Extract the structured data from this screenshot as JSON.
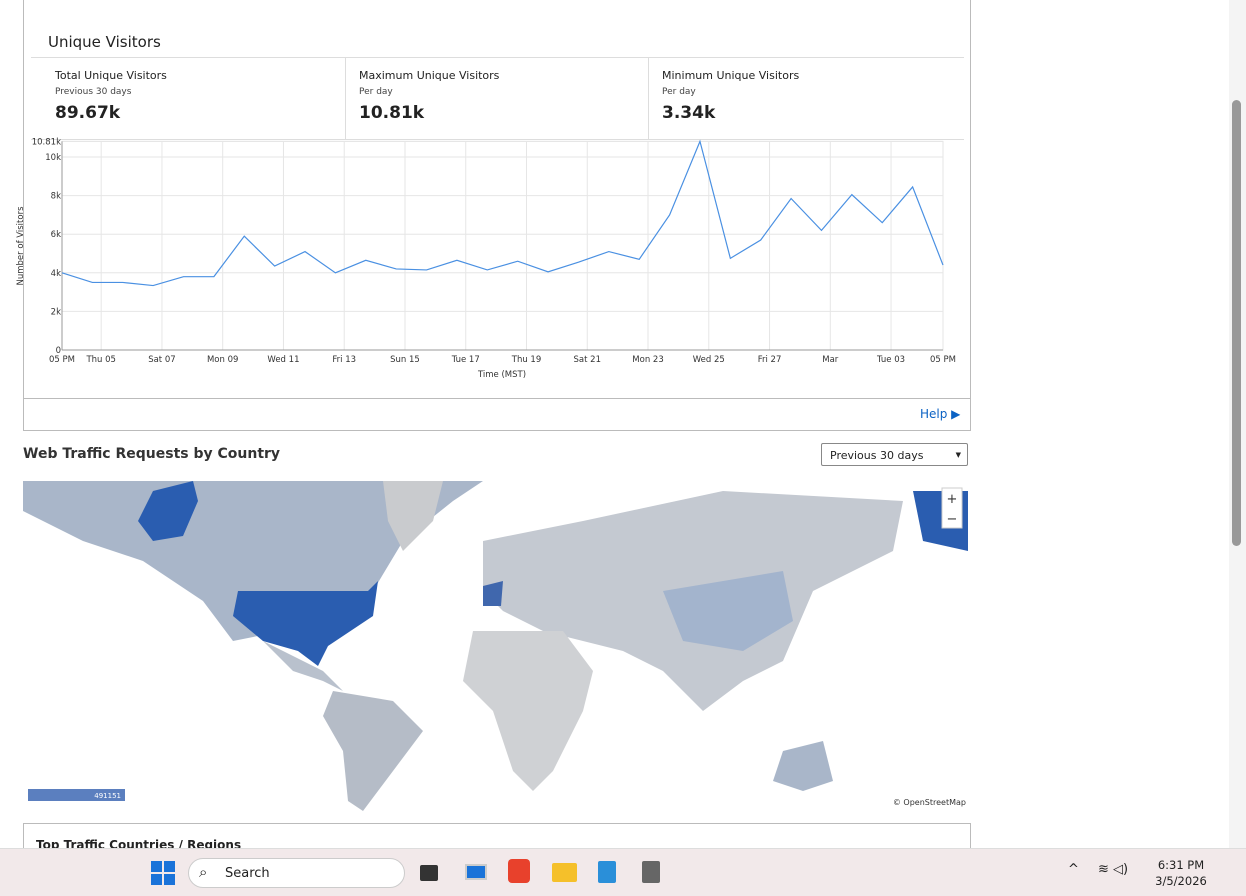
{
  "card": {
    "title": "Unique Visitors",
    "stats": [
      {
        "label": "Total Unique Visitors",
        "sub": "Previous 30 days",
        "value": "89.67k"
      },
      {
        "label": "Maximum Unique Visitors",
        "sub": "Per day",
        "value": "10.81k"
      },
      {
        "label": "Minimum Unique Visitors",
        "sub": "Per day",
        "value": "3.34k"
      }
    ],
    "help": "Help"
  },
  "chart_data": {
    "type": "line",
    "ylabel": "Number of Visitors",
    "xlabel": "Time (MST)",
    "x": [
      0,
      1,
      2,
      3,
      4,
      5,
      6,
      7,
      8,
      9,
      10,
      11,
      12,
      13,
      14,
      15,
      16,
      17,
      18,
      19,
      20,
      21,
      22,
      23,
      24,
      25,
      26,
      27,
      28,
      29
    ],
    "series": [
      {
        "name": "Unique Visitors",
        "color": "#4a90e2",
        "values": [
          4000,
          3500,
          3500,
          3340,
          3800,
          3800,
          5900,
          4350,
          5100,
          4000,
          4650,
          4200,
          4150,
          4650,
          4150,
          4600,
          4050,
          4550,
          5100,
          4700,
          7000,
          10810,
          4750,
          5700,
          7850,
          6200,
          8050,
          6600,
          8450,
          4400
        ]
      }
    ],
    "xlim": [
      0,
      29
    ],
    "ylim": [
      0,
      10810
    ],
    "xticks": [
      {
        "value": 0,
        "label": "05 PM"
      },
      {
        "value": 1.29,
        "label": "Thu 05"
      },
      {
        "value": 3.29,
        "label": "Sat 07"
      },
      {
        "value": 5.29,
        "label": "Mon 09"
      },
      {
        "value": 7.29,
        "label": "Wed 11"
      },
      {
        "value": 9.29,
        "label": "Fri 13"
      },
      {
        "value": 11.29,
        "label": "Sun 15"
      },
      {
        "value": 13.29,
        "label": "Tue 17"
      },
      {
        "value": 15.29,
        "label": "Thu 19"
      },
      {
        "value": 17.29,
        "label": "Sat 21"
      },
      {
        "value": 19.29,
        "label": "Mon 23"
      },
      {
        "value": 21.29,
        "label": "Wed 25"
      },
      {
        "value": 23.29,
        "label": "Fri 27"
      },
      {
        "value": 25.29,
        "label": "Mar"
      },
      {
        "value": 27.29,
        "label": "Tue 03"
      },
      {
        "value": 29,
        "label": "05 PM"
      }
    ],
    "yticks": [
      0,
      {
        "value": 2000,
        "label": "2k"
      },
      {
        "value": 4000,
        "label": "4k"
      },
      {
        "value": 6000,
        "label": "6k"
      },
      {
        "value": 8000,
        "label": "8k"
      },
      {
        "value": 10000,
        "label": "10k"
      },
      {
        "value": 10810,
        "label": "10.81k"
      }
    ],
    "grid": true
  },
  "map": {
    "title": "Web Traffic Requests by Country",
    "range": "Previous 30 days",
    "zoom_in": "+",
    "zoom_out": "−",
    "legend_max": "491151",
    "attribution": "© OpenStreetMap"
  },
  "next_card": {
    "title": "Top Traffic Countries / Regions"
  },
  "taskbar": {
    "search": "Search",
    "time": "6:31 PM",
    "date": "3/5/2026"
  }
}
